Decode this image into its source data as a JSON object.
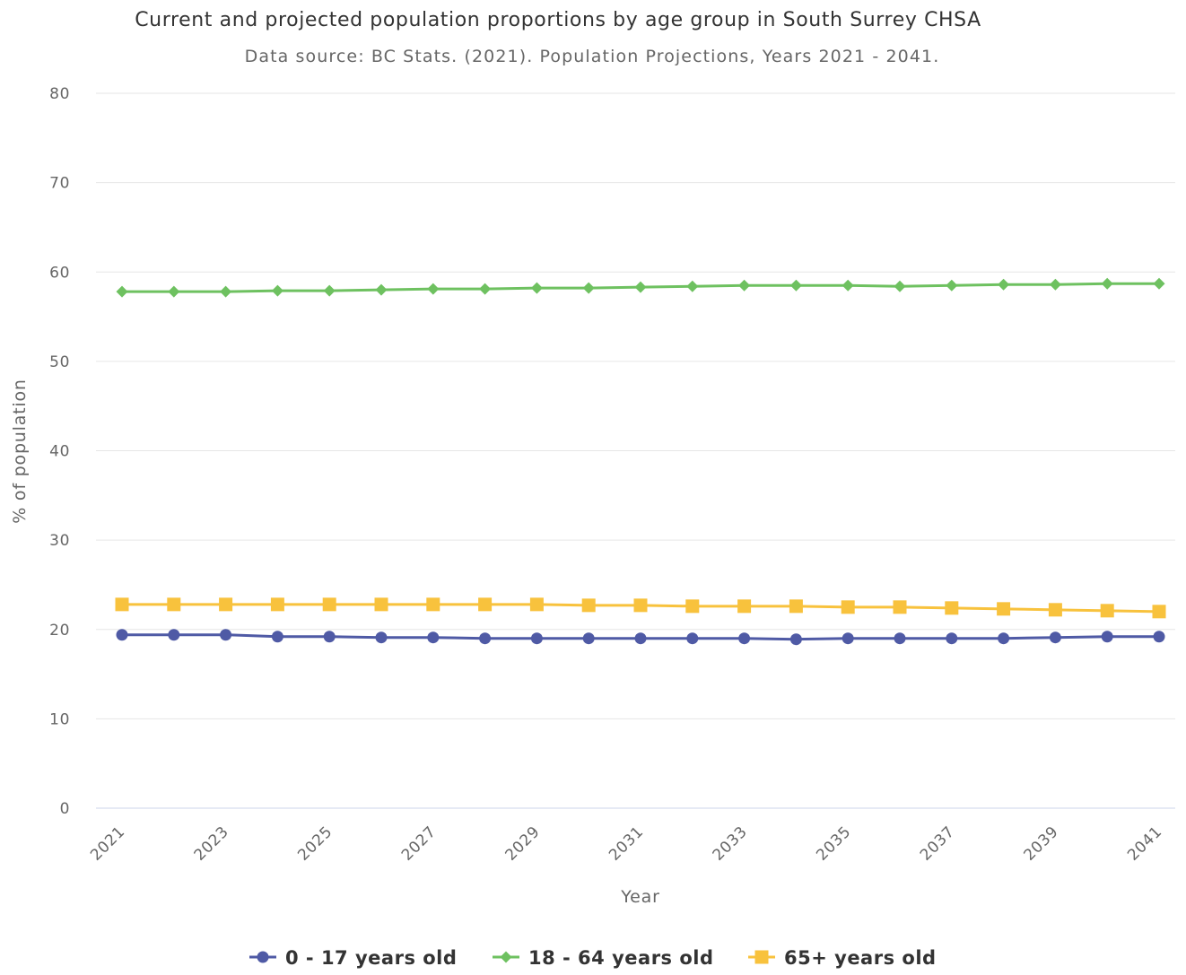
{
  "chart_data": {
    "type": "line",
    "title": "Current and projected population proportions by age group in South Surrey CHSA",
    "subtitle": "Data source: BC Stats. (2021). Population Projections, Years 2021 - 2041.",
    "xlabel": "Year",
    "ylabel": "% of population",
    "x": [
      2021,
      2022,
      2023,
      2024,
      2025,
      2026,
      2027,
      2028,
      2029,
      2030,
      2031,
      2032,
      2033,
      2034,
      2035,
      2036,
      2037,
      2038,
      2039,
      2040,
      2041
    ],
    "x_tick_labels": [
      "2021",
      "2023",
      "2025",
      "2027",
      "2029",
      "2031",
      "2033",
      "2035",
      "2037",
      "2039",
      "2041"
    ],
    "y_ticks": [
      0,
      10,
      20,
      30,
      40,
      50,
      60,
      70,
      80
    ],
    "ylim": [
      0,
      80
    ],
    "grid": true,
    "legend_position": "bottom",
    "series": [
      {
        "name": "0 - 17 years old",
        "color": "#4f5aa5",
        "marker": "circle",
        "values": [
          19.4,
          19.4,
          19.4,
          19.2,
          19.2,
          19.1,
          19.1,
          19.0,
          19.0,
          19.0,
          19.0,
          19.0,
          19.0,
          18.9,
          19.0,
          19.0,
          19.0,
          19.0,
          19.1,
          19.2,
          19.2
        ]
      },
      {
        "name": "18 - 64 years old",
        "color": "#6ec160",
        "marker": "diamond",
        "values": [
          57.8,
          57.8,
          57.8,
          57.9,
          57.9,
          58.0,
          58.1,
          58.1,
          58.2,
          58.2,
          58.3,
          58.4,
          58.5,
          58.5,
          58.5,
          58.4,
          58.5,
          58.6,
          58.6,
          58.7,
          58.7
        ]
      },
      {
        "name": "65+ years old",
        "color": "#f8c23d",
        "marker": "square",
        "values": [
          22.8,
          22.8,
          22.8,
          22.8,
          22.8,
          22.8,
          22.8,
          22.8,
          22.8,
          22.7,
          22.7,
          22.6,
          22.6,
          22.6,
          22.5,
          22.5,
          22.4,
          22.3,
          22.2,
          22.1,
          22.0
        ]
      }
    ]
  }
}
